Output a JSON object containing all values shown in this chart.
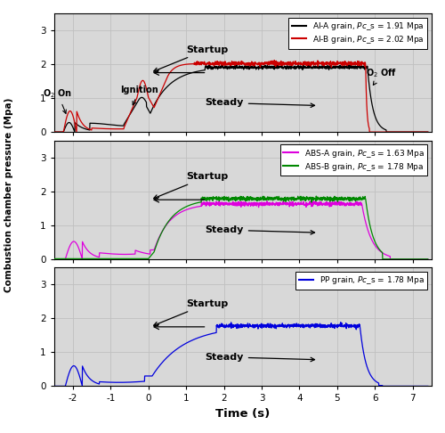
{
  "xlim": [
    -2.5,
    7.5
  ],
  "ylim": [
    0,
    3.5
  ],
  "yticks": [
    0,
    1,
    2,
    3
  ],
  "xticks": [
    -2,
    -1,
    0,
    1,
    2,
    3,
    4,
    5,
    6,
    7
  ],
  "xlabel": "Time (s)",
  "ylabel": "Combustion chamber pressure (Mpa)",
  "grid_color": "#c0c0c0",
  "bg_color": "#d8d8d8",
  "figsize": [
    5.0,
    4.86
  ],
  "dpi": 100,
  "panel1": {
    "line1_color": "#000000",
    "line2_color": "#cc0000",
    "legend1": "Al-A grain, $\\mathit{Pc}$_s = 1.91 Mpa",
    "legend2": "Al-B grain, $\\mathit{Pc}$_s = 2.02 Mpa"
  },
  "panel2": {
    "line1_color": "#dd00dd",
    "line2_color": "#008800",
    "legend1": "ABS-A grain, $\\mathit{Pc}$_s = 1.63 Mpa",
    "legend2": "ABS-B grain, $\\mathit{Pc}$_s = 1.78 Mpa"
  },
  "panel3": {
    "line1_color": "#0000dd",
    "legend1": "PP grain, $\\mathit{Pc}$_s = 1.78 Mpa"
  }
}
